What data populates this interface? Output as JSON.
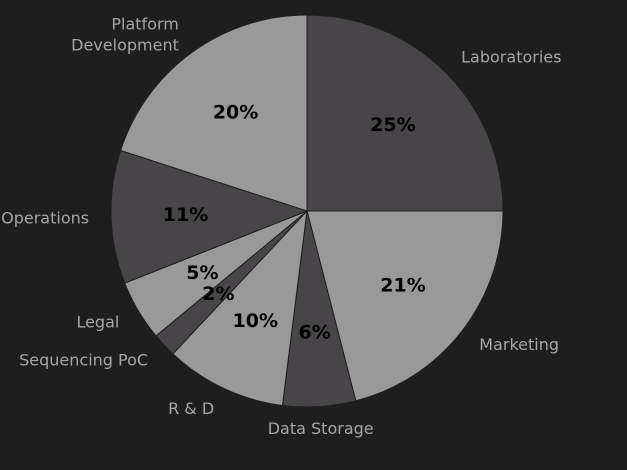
{
  "chart_data": {
    "type": "pie",
    "title": "",
    "slices": [
      {
        "label": "Laboratories",
        "label_lines": [
          "Laboratories"
        ],
        "value": 25,
        "pct_text": "25%",
        "color": "#474547"
      },
      {
        "label": "Marketing",
        "label_lines": [
          "Marketing"
        ],
        "value": 21,
        "pct_text": "21%",
        "color": "#9a999a"
      },
      {
        "label": "Data Storage",
        "label_lines": [
          "Data Storage"
        ],
        "value": 6,
        "pct_text": "6%",
        "color": "#474547"
      },
      {
        "label": "R & D",
        "label_lines": [
          "R & D"
        ],
        "value": 10,
        "pct_text": "10%",
        "color": "#9a999a"
      },
      {
        "label": "Sequencing PoC",
        "label_lines": [
          "Sequencing PoC"
        ],
        "value": 2,
        "pct_text": "2%",
        "color": "#474547"
      },
      {
        "label": "Legal",
        "label_lines": [
          "Legal"
        ],
        "value": 5,
        "pct_text": "5%",
        "color": "#9a999a"
      },
      {
        "label": "Operations",
        "label_lines": [
          "Operations"
        ],
        "value": 11,
        "pct_text": "11%",
        "color": "#474547"
      },
      {
        "label": "Platform Development",
        "label_lines": [
          "Platform",
          "Development"
        ],
        "value": 20,
        "pct_text": "20%",
        "color": "#9a999a"
      }
    ],
    "start_angle": "12 o'clock",
    "direction": "clockwise",
    "background": "#1e1e1e",
    "label_color": "#a6a6a6",
    "pct_label_color": "#000000"
  }
}
